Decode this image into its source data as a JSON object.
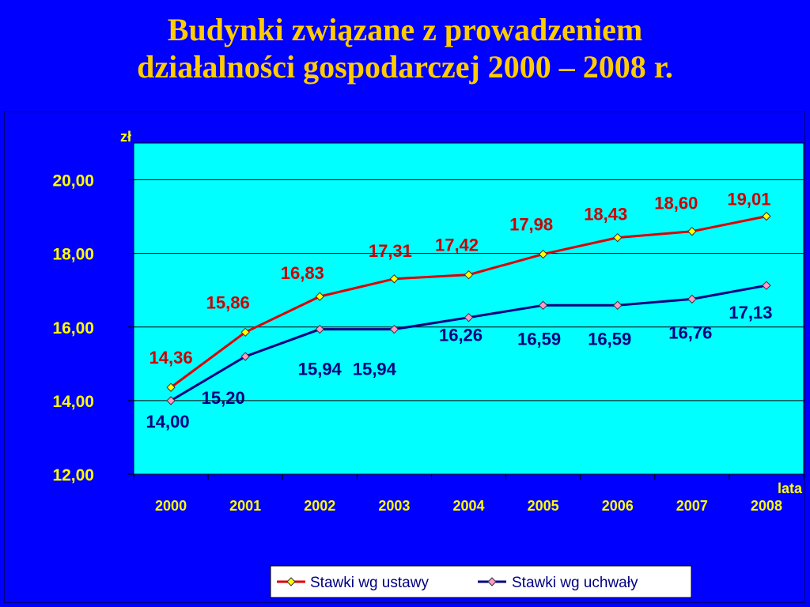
{
  "slide": {
    "title_line1": "Budynki związane z prowadzeniem",
    "title_line2": "działalności gospodarczej 2000 – 2008 r."
  },
  "chart_data": {
    "type": "line",
    "categories": [
      "2000",
      "2001",
      "2002",
      "2003",
      "2004",
      "2005",
      "2006",
      "2007",
      "2008"
    ],
    "series": [
      {
        "name": "Stawki wg ustawy",
        "color": "#dd0000",
        "marker_color": "#ffff00",
        "label_color": "#cc0000",
        "values": [
          14.36,
          15.86,
          16.83,
          17.31,
          17.42,
          17.98,
          18.43,
          18.6,
          19.01
        ],
        "value_labels": [
          "14,36",
          "15,86",
          "16,83",
          "17,31",
          "17,42",
          "17,98",
          "18,43",
          "18,60",
          "19,01"
        ]
      },
      {
        "name": "Stawki wg uchwały",
        "color": "#000080",
        "marker_color": "#ff99cc",
        "label_color": "#000080",
        "values": [
          14.0,
          15.2,
          15.94,
          15.94,
          16.26,
          16.59,
          16.59,
          16.76,
          17.13
        ],
        "value_labels": [
          "14,00",
          "15,20",
          "15,94",
          "15,94",
          "16,26",
          "16,59",
          "16,59",
          "16,76",
          "17,13"
        ]
      }
    ],
    "yticks": [
      12,
      14,
      16,
      18,
      20
    ],
    "ytick_labels": [
      "12,00",
      "14,00",
      "16,00",
      "18,00",
      "20,00"
    ],
    "ylim": [
      12,
      21
    ],
    "ylabel": "zł",
    "xlabel": "lata",
    "plot_background": "#00ffff",
    "grid": true,
    "legend_position": "bottom-right"
  }
}
